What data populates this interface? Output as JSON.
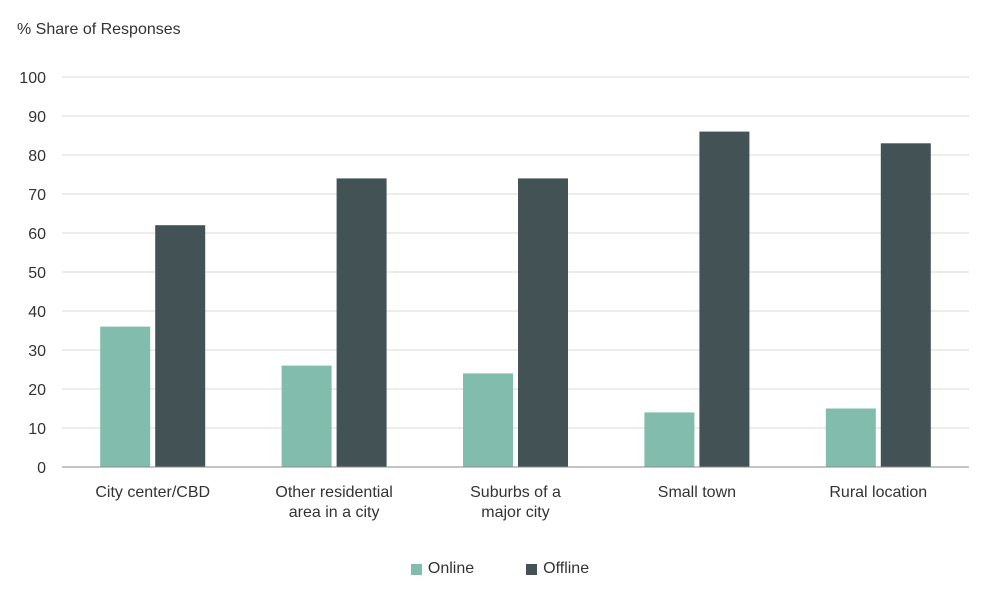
{
  "chart_data": {
    "type": "bar",
    "ylabel": "% Share of Responses",
    "ylim": [
      0,
      100
    ],
    "yticks": [
      0,
      10,
      20,
      30,
      40,
      50,
      60,
      70,
      80,
      90,
      100
    ],
    "grid": true,
    "legend_position": "bottom-center",
    "categories": [
      [
        "City center/CBD"
      ],
      [
        "Other residential",
        "area in a city"
      ],
      [
        "Suburbs of a",
        "major city"
      ],
      [
        "Small town"
      ],
      [
        "Rural location"
      ]
    ],
    "series": [
      {
        "name": "Online",
        "color": "#82bcad",
        "values": [
          36,
          26,
          24,
          14,
          15
        ]
      },
      {
        "name": "Offline",
        "color": "#435255",
        "values": [
          62,
          74,
          74,
          86,
          83
        ]
      }
    ]
  }
}
